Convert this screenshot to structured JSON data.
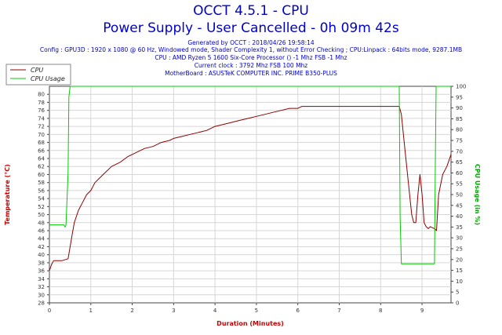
{
  "header": {
    "title_line1": "OCCT 4.5.1 - CPU",
    "title_line2": "Power Supply - User Cancelled - 0h 09m 42s",
    "generated": "Generated by OCCT : 2018/04/26 19:58:14",
    "config": "Config : GPU3D : 1920 x 1080 @ 60 Hz, Windowed mode, Shader Complexity 1, without Error Checking ; CPU:Linpack : 64bits mode, 9287.1MB",
    "cpu": "CPU : AMD Ryzen 5 1600 Six-Core Processor () -1 Mhz FSB -1 Mhz",
    "clock": "Current clock : 3792 Mhz FSB 100 Mhz",
    "motherboard": "MotherBoard : ASUSTeK COMPUTER INC. PRIME B350-PLUS"
  },
  "chart_data": {
    "type": "line",
    "xlabel": "Duration (Minutes)",
    "ylabel": "Temperature (°C)",
    "y2label": "CPU Usage (in %)",
    "xlim": [
      0,
      9.7
    ],
    "ylim": [
      28,
      82
    ],
    "y2lim": [
      0,
      100
    ],
    "x_ticks": [
      "0",
      "1",
      "2",
      "3",
      "4",
      "5",
      "6",
      "7",
      "8",
      "9"
    ],
    "y_ticks": [
      "28",
      "30",
      "32",
      "34",
      "36",
      "38",
      "40",
      "42",
      "44",
      "46",
      "48",
      "50",
      "52",
      "54",
      "56",
      "58",
      "60",
      "62",
      "64",
      "66",
      "68",
      "70",
      "72",
      "74",
      "76",
      "78",
      "80"
    ],
    "y2_ticks": [
      "0",
      "5",
      "10",
      "15",
      "20",
      "25",
      "30",
      "35",
      "40",
      "45",
      "50",
      "55",
      "60",
      "65",
      "70",
      "75",
      "80",
      "85",
      "90",
      "95",
      "100"
    ],
    "grid": true,
    "legend_position": "top-left",
    "series": [
      {
        "name": "CPU",
        "axis": "left",
        "color": "#8b0000",
        "x": [
          0,
          0.05,
          0.1,
          0.3,
          0.45,
          0.5,
          0.55,
          0.6,
          0.7,
          0.8,
          0.9,
          1.0,
          1.1,
          1.2,
          1.3,
          1.5,
          1.7,
          1.9,
          2.1,
          2.3,
          2.5,
          2.7,
          2.9,
          3.0,
          3.2,
          3.4,
          3.6,
          3.8,
          4.0,
          4.2,
          4.4,
          4.6,
          4.8,
          5.0,
          5.2,
          5.4,
          5.6,
          5.8,
          6.0,
          6.1,
          6.3,
          6.5,
          7.0,
          7.5,
          8.0,
          8.4,
          8.45,
          8.5,
          8.6,
          8.7,
          8.75,
          8.8,
          8.85,
          8.9,
          8.95,
          9.0,
          9.05,
          9.1,
          9.15,
          9.2,
          9.3,
          9.35,
          9.4,
          9.5,
          9.6,
          9.7
        ],
        "y": [
          36,
          37.5,
          38.5,
          38.5,
          39,
          42,
          45,
          48,
          51,
          53,
          55,
          56,
          58,
          59,
          60,
          62,
          63,
          64.5,
          65.5,
          66.5,
          67,
          68,
          68.5,
          69,
          69.5,
          70,
          70.5,
          71,
          72,
          72.5,
          73,
          73.5,
          74,
          74.5,
          75,
          75.5,
          76,
          76.5,
          76.5,
          77,
          77,
          77,
          77,
          77,
          77,
          77,
          77,
          75,
          65,
          55,
          50,
          48,
          48,
          55,
          60,
          55,
          48,
          47,
          46.5,
          47,
          46.5,
          46,
          55,
          60,
          62,
          65
        ]
      },
      {
        "name": "CPU Usage",
        "axis": "right",
        "color": "#00cc00",
        "x": [
          0,
          0.35,
          0.38,
          0.4,
          0.41,
          0.45,
          0.47,
          0.5,
          8.45,
          8.47,
          8.5,
          8.6,
          8.8,
          9.0,
          9.2,
          9.3,
          9.32,
          9.34,
          9.7
        ],
        "y": [
          36,
          36,
          35,
          36,
          40,
          60,
          95,
          100,
          100,
          40,
          18,
          18,
          18,
          18,
          18,
          18,
          60,
          100,
          100
        ]
      }
    ]
  }
}
